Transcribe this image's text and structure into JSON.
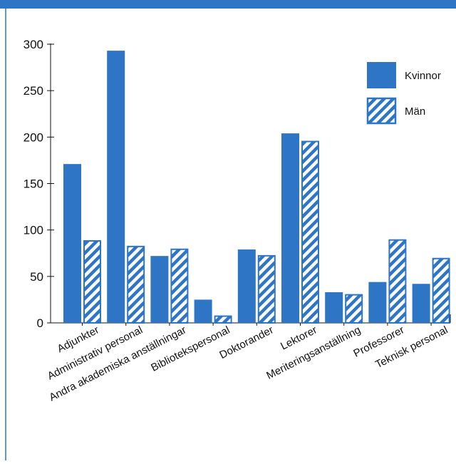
{
  "colors": {
    "header": "#2e75c6",
    "frame": "#2e75c6",
    "women": "#2e75c6",
    "men_stroke": "#2e75c6",
    "men_hatch": "#2e75c6",
    "axis": "#111111"
  },
  "chart_data": {
    "type": "bar",
    "categories": [
      "Adjunkter",
      "Administrativ personal",
      "Andra akademiska anställningar",
      "Bibliotekspersonal",
      "Doktorander",
      "Lektorer",
      "Meriteringsanställning",
      "Professorer",
      "Teknisk personal"
    ],
    "series": [
      {
        "name": "Kvinnor",
        "style": "solid",
        "values": [
          171,
          293,
          72,
          25,
          79,
          204,
          33,
          44,
          42
        ]
      },
      {
        "name": "Män",
        "style": "hatched",
        "values": [
          89,
          83,
          80,
          8,
          73,
          196,
          31,
          90,
          70
        ]
      }
    ],
    "ylim": [
      0,
      300
    ],
    "yticks": [
      0,
      50,
      100,
      150,
      200,
      250,
      300
    ],
    "legend_position": "top-right",
    "grid": false
  }
}
